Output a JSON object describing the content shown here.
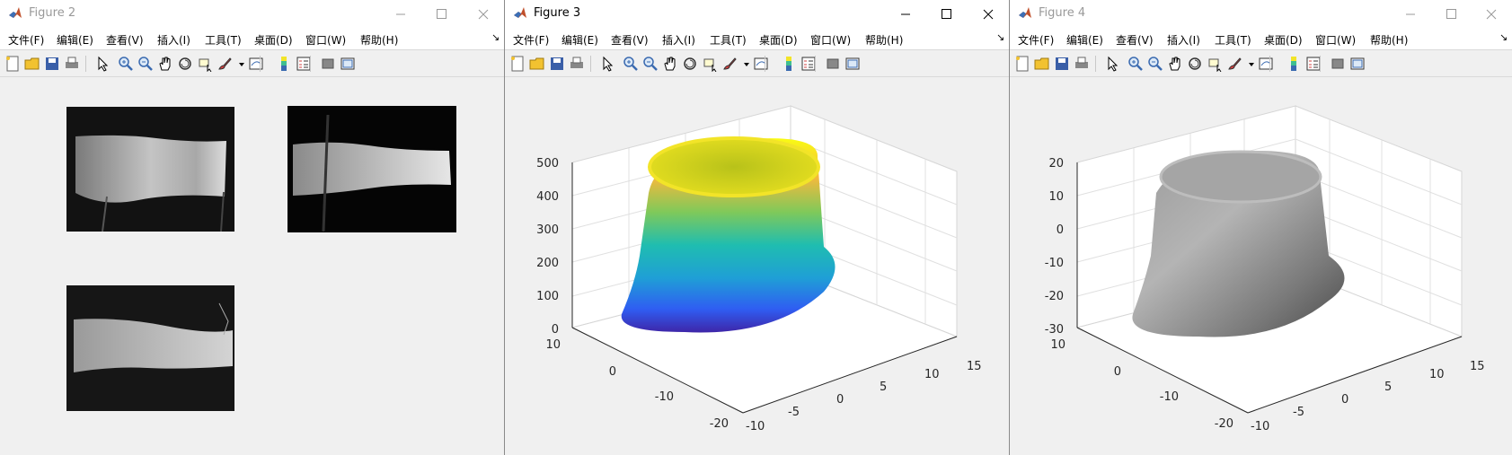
{
  "windows": [
    {
      "title": "Figure 2",
      "active": false
    },
    {
      "title": "Figure 3",
      "active": true
    },
    {
      "title": "Figure 4",
      "active": false
    }
  ],
  "menu_items": [
    "文件(F)",
    "编辑(E)",
    "查看(V)",
    "插入(I)",
    "工具(T)",
    "桌面(D)",
    "窗口(W)",
    "帮助(H)"
  ],
  "menu_overflow": "↘",
  "toolbar_icons": [
    "new-figure-icon",
    "open-file-icon",
    "save-icon",
    "print-icon",
    "edit-plot-icon",
    "zoom-in-icon",
    "zoom-out-icon",
    "pan-icon",
    "rotate-3d-icon",
    "data-cursor-icon",
    "brush-icon",
    "brush-dropdown-icon",
    "link-plot-icon",
    "colorbar-icon",
    "legend-icon",
    "hide-plot-tools-icon",
    "show-plot-tools-icon"
  ],
  "figure3_axes": {
    "z_ticks": [
      "500",
      "400",
      "300",
      "200",
      "100",
      "0"
    ],
    "x_ticks": [
      "10",
      "0",
      "-10",
      "-20"
    ],
    "y_ticks": [
      "-10",
      "-5",
      "0",
      "5",
      "10",
      "15"
    ],
    "colormap": "parula"
  },
  "figure4_axes": {
    "z_ticks": [
      "20",
      "10",
      "0",
      "-10",
      "-20",
      "-30"
    ],
    "x_ticks": [
      "10",
      "0",
      "-10",
      "-20"
    ],
    "y_ticks": [
      "-10",
      "-5",
      "0",
      "5",
      "10",
      "15"
    ],
    "colormap": "gray"
  },
  "colors": {
    "window_bg": "#f0f0f0",
    "titlebar_bg": "#ffffff",
    "inactive_title": "#999999"
  }
}
